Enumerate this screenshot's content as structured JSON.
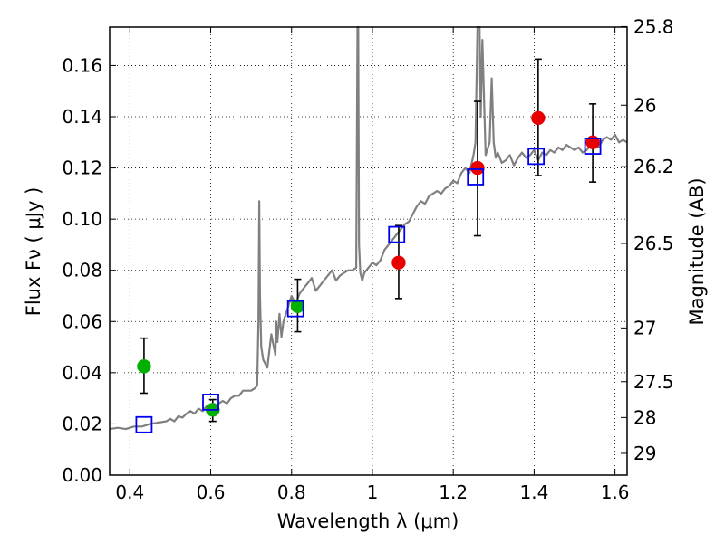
{
  "chart_data": {
    "type": "scatter",
    "title": "",
    "xlabel": "Wavelength  λ (μm)",
    "ylabel": "Flux  Fν  ( μJy )",
    "y2label": "Magnitude (AB)",
    "xlim": [
      0.35,
      1.63
    ],
    "ylim": [
      0.0,
      0.175
    ],
    "xticks": [
      0.4,
      0.6,
      0.8,
      1.0,
      1.2,
      1.4,
      1.6
    ],
    "xtick_labels": [
      "0.4",
      "0.6",
      "0.8",
      "1",
      "1.2",
      "1.4",
      "1.6"
    ],
    "yticks": [
      0.0,
      0.02,
      0.04,
      0.06,
      0.08,
      0.1,
      0.12,
      0.14,
      0.16
    ],
    "ytick_labels": [
      "0.00",
      "0.02",
      "0.04",
      "0.06",
      "0.08",
      "0.10",
      "0.12",
      "0.14",
      "0.16"
    ],
    "y2ticks": [
      {
        "label": "25.8",
        "flux": 0.1752
      },
      {
        "label": "26",
        "flux": 0.1445
      },
      {
        "label": "26.2",
        "flux": 0.1205
      },
      {
        "label": "26.5",
        "flux": 0.0905
      },
      {
        "label": "27",
        "flux": 0.0575
      },
      {
        "label": "27.5",
        "flux": 0.0365
      },
      {
        "label": "28",
        "flux": 0.0225
      },
      {
        "label": "29",
        "flux": 0.0085
      }
    ],
    "grid": true,
    "colors": {
      "model": "#808080",
      "green": "#00b000",
      "red": "#e80000",
      "box": "#0000ee",
      "err": "#000000"
    },
    "series": [
      {
        "kind": "line",
        "color": "#808080",
        "x": [
          0.35,
          0.37,
          0.39,
          0.41,
          0.43,
          0.45,
          0.47,
          0.49,
          0.5,
          0.51,
          0.52,
          0.53,
          0.54,
          0.55,
          0.56,
          0.57,
          0.58,
          0.59,
          0.6,
          0.61,
          0.62,
          0.63,
          0.64,
          0.65,
          0.66,
          0.67,
          0.68,
          0.69,
          0.7,
          0.71,
          0.715,
          0.718,
          0.72,
          0.722,
          0.725,
          0.73,
          0.74,
          0.75,
          0.76,
          0.762,
          0.765,
          0.77,
          0.775,
          0.78,
          0.79,
          0.8,
          0.81,
          0.82,
          0.83,
          0.84,
          0.85,
          0.86,
          0.87,
          0.88,
          0.89,
          0.9,
          0.91,
          0.92,
          0.93,
          0.94,
          0.95,
          0.96,
          0.963,
          0.965,
          0.967,
          0.97,
          0.975,
          0.98,
          0.99,
          1.0,
          1.01,
          1.02,
          1.03,
          1.04,
          1.05,
          1.06,
          1.07,
          1.08,
          1.09,
          1.1,
          1.11,
          1.12,
          1.13,
          1.14,
          1.15,
          1.16,
          1.17,
          1.18,
          1.19,
          1.2,
          1.21,
          1.22,
          1.23,
          1.24,
          1.25,
          1.255,
          1.26,
          1.265,
          1.268,
          1.272,
          1.28,
          1.29,
          1.295,
          1.3,
          1.305,
          1.31,
          1.32,
          1.33,
          1.34,
          1.35,
          1.36,
          1.37,
          1.38,
          1.39,
          1.4,
          1.41,
          1.42,
          1.43,
          1.44,
          1.45,
          1.46,
          1.47,
          1.48,
          1.49,
          1.5,
          1.51,
          1.52,
          1.53,
          1.54,
          1.55,
          1.56,
          1.57,
          1.58,
          1.59,
          1.6,
          1.61,
          1.62,
          1.63
        ],
        "y": [
          0.018,
          0.0185,
          0.018,
          0.019,
          0.019,
          0.02,
          0.0205,
          0.021,
          0.022,
          0.021,
          0.023,
          0.0225,
          0.024,
          0.025,
          0.024,
          0.026,
          0.025,
          0.027,
          0.027,
          0.026,
          0.028,
          0.029,
          0.028,
          0.03,
          0.031,
          0.031,
          0.033,
          0.033,
          0.033,
          0.034,
          0.035,
          0.06,
          0.107,
          0.07,
          0.05,
          0.045,
          0.042,
          0.055,
          0.047,
          0.06,
          0.052,
          0.063,
          0.054,
          0.06,
          0.065,
          0.07,
          0.067,
          0.071,
          0.073,
          0.075,
          0.077,
          0.072,
          0.074,
          0.076,
          0.078,
          0.08,
          0.076,
          0.078,
          0.079,
          0.08,
          0.08,
          0.081,
          0.175,
          0.175,
          0.09,
          0.079,
          0.076,
          0.079,
          0.081,
          0.083,
          0.082,
          0.084,
          0.088,
          0.09,
          0.092,
          0.094,
          0.096,
          0.098,
          0.099,
          0.102,
          0.105,
          0.107,
          0.106,
          0.109,
          0.11,
          0.111,
          0.11,
          0.112,
          0.113,
          0.115,
          0.114,
          0.118,
          0.12,
          0.118,
          0.125,
          0.13,
          0.175,
          0.175,
          0.14,
          0.17,
          0.125,
          0.13,
          0.155,
          0.13,
          0.124,
          0.126,
          0.122,
          0.123,
          0.125,
          0.121,
          0.124,
          0.126,
          0.124,
          0.125,
          0.127,
          0.123,
          0.126,
          0.125,
          0.127,
          0.126,
          0.128,
          0.127,
          0.129,
          0.128,
          0.127,
          0.128,
          0.126,
          0.127,
          0.129,
          0.13,
          0.128,
          0.131,
          0.132,
          0.131,
          0.133,
          0.13,
          0.131,
          0.13
        ]
      },
      {
        "kind": "errorbar",
        "marker": "circle",
        "color": "#00b000",
        "points": [
          {
            "x": 0.435,
            "y": 0.0425,
            "ylo": 0.032,
            "yhi": 0.0535
          },
          {
            "x": 0.605,
            "y": 0.0255,
            "ylo": 0.021,
            "yhi": 0.0295
          },
          {
            "x": 0.815,
            "y": 0.066,
            "ylo": 0.056,
            "yhi": 0.0765
          }
        ]
      },
      {
        "kind": "errorbar",
        "marker": "circle",
        "color": "#e80000",
        "points": [
          {
            "x": 1.065,
            "y": 0.083,
            "ylo": 0.069,
            "yhi": 0.0975
          },
          {
            "x": 1.26,
            "y": 0.12,
            "ylo": 0.0935,
            "yhi": 0.146
          },
          {
            "x": 1.41,
            "y": 0.1395,
            "ylo": 0.117,
            "yhi": 0.1625
          },
          {
            "x": 1.545,
            "y": 0.13,
            "ylo": 0.1145,
            "yhi": 0.145
          }
        ]
      },
      {
        "kind": "scatter",
        "marker": "square-open",
        "color": "#0000ee",
        "points": [
          {
            "x": 0.435,
            "y": 0.0197
          },
          {
            "x": 0.6,
            "y": 0.0285
          },
          {
            "x": 0.81,
            "y": 0.065
          },
          {
            "x": 1.06,
            "y": 0.094
          },
          {
            "x": 1.255,
            "y": 0.1165
          },
          {
            "x": 1.405,
            "y": 0.1245
          },
          {
            "x": 1.545,
            "y": 0.1285
          }
        ]
      }
    ]
  }
}
